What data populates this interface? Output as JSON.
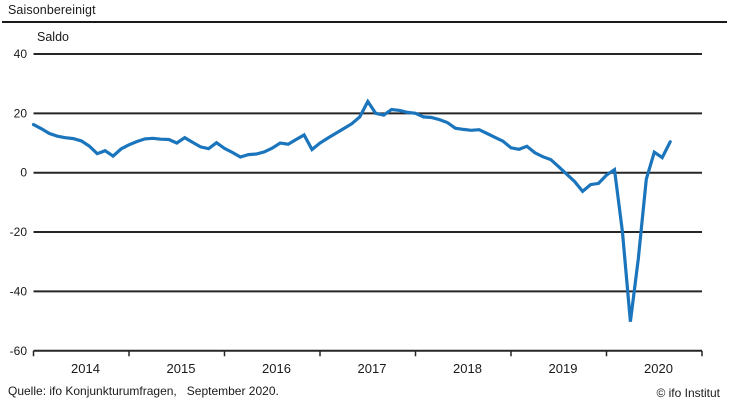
{
  "header": {
    "title": "Saisonbereinigt"
  },
  "footer": {
    "source": "Quelle: ifo Konjunkturumfragen,   September 2020.",
    "credit": "© ifo Institut"
  },
  "chart_data": {
    "type": "line",
    "title": "Saisonbereinigt",
    "ylabel": "Saldo",
    "frequency": "monthly",
    "x_start": "2014-01",
    "x_end": "2020-09",
    "ylim": [
      -60,
      40
    ],
    "yticks": [
      40,
      20,
      0,
      -20,
      -40,
      -60
    ],
    "year_labels": [
      "2014",
      "2015",
      "2016",
      "2017",
      "2018",
      "2019",
      "2020"
    ],
    "grid_on": true,
    "legend": "none",
    "line_color": "#1b75bc",
    "grid_color": "#262626",
    "series": [
      {
        "name": "Saldo (saisonbereinigt)",
        "values": [
          16.2,
          14.8,
          13.2,
          12.3,
          11.8,
          11.5,
          10.7,
          9.0,
          6.4,
          7.4,
          5.6,
          8.0,
          9.4,
          10.5,
          11.4,
          11.6,
          11.3,
          11.2,
          10.0,
          11.8,
          10.2,
          8.7,
          8.1,
          10.1,
          8.2,
          6.8,
          5.3,
          6.1,
          6.3,
          7.0,
          8.3,
          10.0,
          9.6,
          11.2,
          12.7,
          7.8,
          10.0,
          11.7,
          13.3,
          14.9,
          16.5,
          18.8,
          24.0,
          20.0,
          19.4,
          21.3,
          21.0,
          20.3,
          20.0,
          18.8,
          18.6,
          17.9,
          16.9,
          15.0,
          14.6,
          14.3,
          14.5,
          13.2,
          11.9,
          10.6,
          8.4,
          7.9,
          8.9,
          6.7,
          5.4,
          4.4,
          2.0,
          -0.5,
          -3.0,
          -6.3,
          -4.0,
          -3.6,
          -0.8,
          1.0,
          -19.8,
          -50.2,
          -29.0,
          -2.2,
          6.9,
          5.1,
          10.4
        ]
      }
    ]
  }
}
